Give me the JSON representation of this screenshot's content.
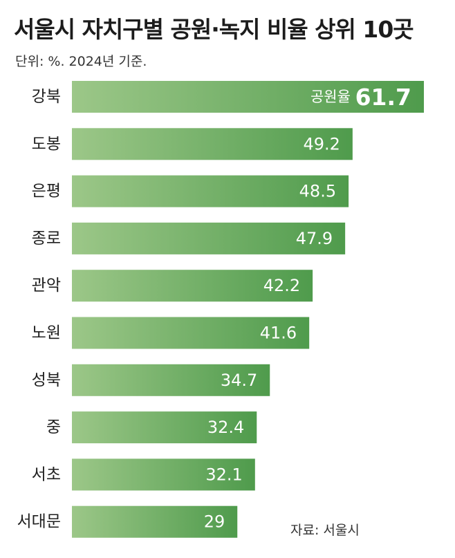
{
  "title": "서울시 자치구별 공원·녹지 비율 상위 10곳",
  "subtitle": "단위: %. 2024년 기준.",
  "source": "자료: 서울시",
  "chart_data": {
    "type": "bar",
    "orientation": "horizontal",
    "categories": [
      "강북",
      "도봉",
      "은평",
      "종로",
      "관악",
      "노원",
      "성북",
      "중",
      "서초",
      "서대문"
    ],
    "values": [
      61.7,
      49.2,
      48.5,
      47.9,
      42.2,
      41.6,
      34.7,
      32.4,
      32.1,
      29
    ],
    "value_labels": [
      "61.7",
      "49.2",
      "48.5",
      "47.9",
      "42.2",
      "41.6",
      "34.7",
      "32.4",
      "32.1",
      "29"
    ],
    "first_bar_prefix": "공원율",
    "colors": {
      "bar_light": "#9cc788",
      "bar_dark": "#4f9b4c",
      "value_text": "#ffffff",
      "category_text": "#1f1f1f"
    }
  }
}
